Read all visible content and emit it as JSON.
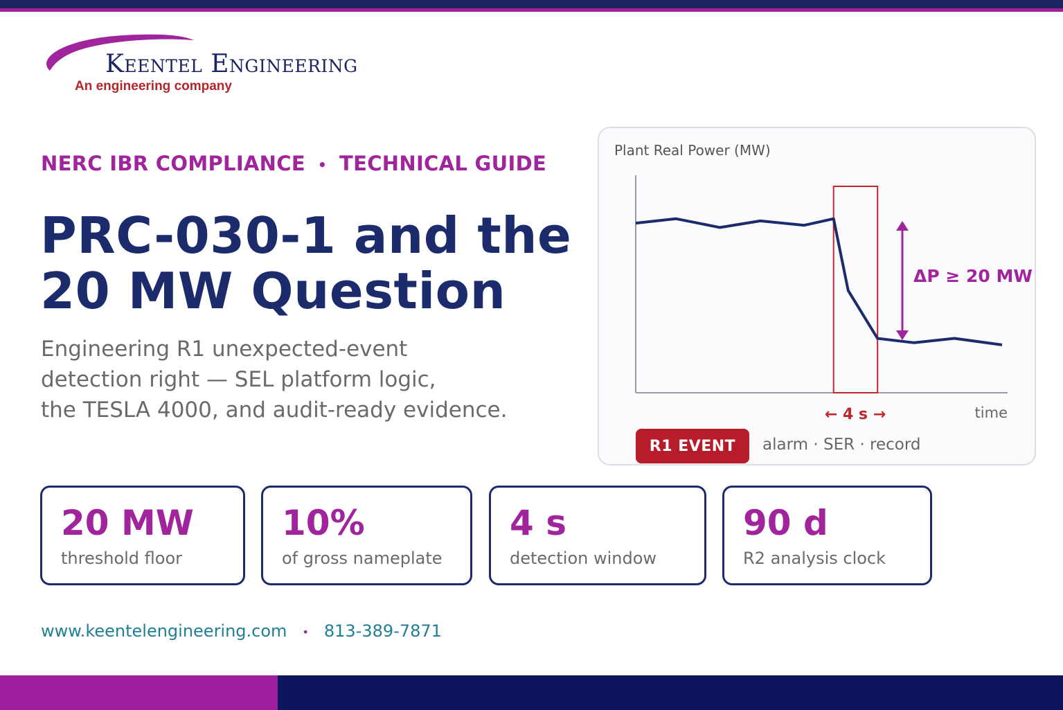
{
  "brand": {
    "name": "Keentel Engineering",
    "tagline": "An engineering company",
    "colors": {
      "navy": "#1b2b6b",
      "purple": "#a0249c",
      "red": "#b71c2a",
      "teal": "#1f7f95"
    }
  },
  "eyebrow": {
    "left": "NERC IBR COMPLIANCE",
    "separator": "•",
    "right": "TECHNICAL GUIDE"
  },
  "headline": {
    "line1": "PRC-030-1 and the",
    "line2": "20 MW Question"
  },
  "subtitle": {
    "line1": "Engineering R1 unexpected-event",
    "line2": "detection right — SEL platform logic,",
    "line3": "the TESLA 4000, and audit-ready evidence."
  },
  "chart": {
    "title": "Plant Real Power (MW)",
    "x_label": "time",
    "window_label": "← 4 s →",
    "delta_label": "ΔP ≥ 20 MW",
    "badge": "R1 EVENT",
    "note": "alarm · SER · record"
  },
  "chart_data": {
    "type": "line",
    "title": "Plant Real Power (MW)",
    "xlabel": "time",
    "ylabel": "",
    "series": [
      {
        "values": [
          0.78,
          0.8,
          0.76,
          0.79,
          0.77,
          0.8,
          0.47,
          0.25,
          0.23,
          0.25,
          0.22
        ]
      }
    ],
    "x": [
      0.0,
      0.11,
      0.23,
      0.34,
      0.46,
      0.54,
      0.58,
      0.66,
      0.76,
      0.87,
      1.0
    ],
    "annotations": [
      {
        "type": "window",
        "label": "← 4 s →",
        "x_start": 0.54,
        "x_end": 0.66
      },
      {
        "type": "delta",
        "label": "ΔP ≥ 20 MW"
      }
    ],
    "ylim": [
      0,
      1
    ],
    "grid": false
  },
  "stats": [
    {
      "value": "20 MW",
      "label": "threshold floor"
    },
    {
      "value": "10%",
      "label": "of gross nameplate"
    },
    {
      "value": "4 s",
      "label": "detection window"
    },
    {
      "value": "90 d",
      "label": "R2 analysis clock"
    }
  ],
  "contact": {
    "website": "www.keentelengineering.com",
    "separator": "•",
    "phone": "813-389-7871"
  }
}
